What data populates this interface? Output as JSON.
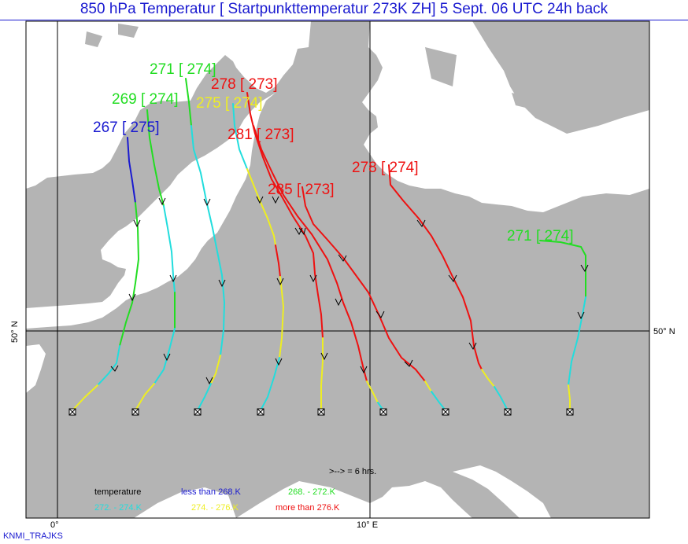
{
  "title": "850 hPa Temperatur [ Startpunkttemperatur  273K ZH] 5 Sept. 06 UTC 24h back",
  "footer": "KNMI_TRAJKS",
  "axes": {
    "left_lat": "50° N",
    "right_lat": "50° N",
    "lon_0": "0°",
    "lon_10": "10° E"
  },
  "trajectory_labels": [
    {
      "text": "271 [ 274]",
      "color": "#22dd22"
    },
    {
      "text": "278 [ 273]",
      "color": "#ee1111"
    },
    {
      "text": "269 [ 274]",
      "color": "#22dd22"
    },
    {
      "text": "275 [ 274]",
      "color": "#eeee22"
    },
    {
      "text": "267 [ 275]",
      "color": "#1a1ad0"
    },
    {
      "text": "281 [ 273]",
      "color": "#ee1111"
    },
    {
      "text": "278 [ 274]",
      "color": "#ee1111"
    },
    {
      "text": "285 [ 273]",
      "color": "#ee1111"
    },
    {
      "text": "271 [ 274]",
      "color": "#22dd22"
    }
  ],
  "arrow_note": ">--> =  6 hrs.",
  "legend": {
    "title": "temperature",
    "items": [
      {
        "text": "less than   268.K",
        "color": "#1a1ad0"
      },
      {
        "text": "268. -     272.K",
        "color": "#22dd22"
      },
      {
        "text": "272. -     274.K",
        "color": "#22dddd"
      },
      {
        "text": "274. -     276.K",
        "color": "#eeee22"
      },
      {
        "text": "more than   276.K",
        "color": "#ee1111"
      }
    ]
  },
  "colors": {
    "sea": "#ffffff",
    "land": "#b4b4b4",
    "blue": "#1a1ad0",
    "green": "#22dd22",
    "cyan": "#22dddd",
    "yellow": "#eeee22",
    "red": "#ee1111"
  }
}
